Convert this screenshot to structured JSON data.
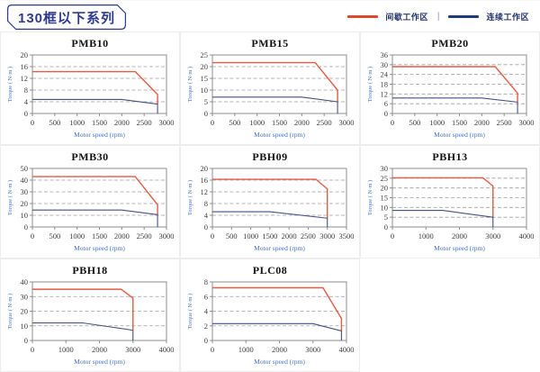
{
  "header": {
    "title": "130框以下系列",
    "legend": {
      "separator": "|",
      "items": [
        {
          "key": "intermittent",
          "label": "间歇工作区",
          "color": "#E2472B"
        },
        {
          "key": "continuous",
          "label": "连续工作区",
          "color": "#1F3D7C"
        }
      ]
    }
  },
  "palette": {
    "intermittent": "#E25B47",
    "continuous": "#44517F",
    "grid": "#9E9E9E",
    "axis": "#8C8C8C"
  },
  "chart_data": [
    {
      "type": "line",
      "title": "PMB10",
      "xlabel": "Motor speed (rpm)",
      "ylabel": "Torque ( N·m )",
      "xlim": [
        0,
        3000
      ],
      "ylim": [
        0,
        20
      ],
      "xticks": [
        0,
        500,
        1000,
        1500,
        2000,
        2500,
        3000
      ],
      "yticks": [
        0,
        4,
        8,
        12,
        16,
        20
      ],
      "grid": "horizontal-dashed",
      "legend_position": "none",
      "series": [
        {
          "key": "intermittent",
          "name": "间歇工作区",
          "points": [
            [
              0,
              14.3
            ],
            [
              2300,
              14.3
            ],
            [
              2800,
              6.5
            ],
            [
              2800,
              3.2
            ]
          ]
        },
        {
          "key": "continuous",
          "name": "连续工作区",
          "points": [
            [
              0,
              4.8
            ],
            [
              2000,
              4.8
            ],
            [
              2800,
              3.2
            ],
            [
              2800,
              0
            ]
          ]
        }
      ]
    },
    {
      "type": "line",
      "title": "PMB15",
      "xlabel": "Motor speed (rpm)",
      "ylabel": "Torque ( N·m )",
      "xlim": [
        0,
        3000
      ],
      "ylim": [
        0,
        25
      ],
      "xticks": [
        0,
        500,
        1000,
        1500,
        2000,
        2500,
        3000
      ],
      "yticks": [
        0,
        5,
        10,
        15,
        20,
        25
      ],
      "grid": "horizontal-dashed",
      "legend_position": "none",
      "series": [
        {
          "key": "intermittent",
          "name": "间歇工作区",
          "points": [
            [
              0,
              21.7
            ],
            [
              2300,
              21.7
            ],
            [
              2800,
              10
            ],
            [
              2800,
              5
            ]
          ]
        },
        {
          "key": "continuous",
          "name": "连续工作区",
          "points": [
            [
              0,
              7
            ],
            [
              2000,
              7
            ],
            [
              2800,
              5
            ],
            [
              2800,
              0
            ]
          ]
        }
      ]
    },
    {
      "type": "line",
      "title": "PMB20",
      "xlabel": "Motor speed (rpm)",
      "ylabel": "Torque ( N·m )",
      "xlim": [
        0,
        3000
      ],
      "ylim": [
        0,
        36
      ],
      "xticks": [
        0,
        500,
        1000,
        1500,
        2000,
        2500,
        3000
      ],
      "yticks": [
        0,
        6,
        12,
        18,
        24,
        30,
        36
      ],
      "grid": "horizontal-dashed",
      "legend_position": "none",
      "series": [
        {
          "key": "intermittent",
          "name": "间歇工作区",
          "points": [
            [
              0,
              28.8
            ],
            [
              2300,
              28.8
            ],
            [
              2800,
              12.5
            ],
            [
              2800,
              7
            ]
          ]
        },
        {
          "key": "continuous",
          "name": "连续工作区",
          "points": [
            [
              0,
              9.5
            ],
            [
              2000,
              9.5
            ],
            [
              2800,
              7
            ],
            [
              2800,
              0
            ]
          ]
        }
      ]
    },
    {
      "type": "line",
      "title": "PMB30",
      "xlabel": "Motor speed (rpm)",
      "ylabel": "Torque ( N·m )",
      "xlim": [
        0,
        3000
      ],
      "ylim": [
        0,
        50
      ],
      "xticks": [
        0,
        500,
        1000,
        1500,
        2000,
        2500,
        3000
      ],
      "yticks": [
        0,
        10,
        20,
        30,
        40,
        50
      ],
      "grid": "horizontal-dashed",
      "legend_position": "none",
      "series": [
        {
          "key": "intermittent",
          "name": "间歇工作区",
          "points": [
            [
              0,
              43
            ],
            [
              2300,
              43
            ],
            [
              2800,
              19
            ],
            [
              2800,
              10.5
            ]
          ]
        },
        {
          "key": "continuous",
          "name": "连续工作区",
          "points": [
            [
              0,
              14.5
            ],
            [
              2000,
              14.5
            ],
            [
              2800,
              10.5
            ],
            [
              2800,
              0
            ]
          ]
        }
      ]
    },
    {
      "type": "line",
      "title": "PBH09",
      "xlabel": "Motor speed (rpm)",
      "ylabel": "Torque ( N·m )",
      "xlim": [
        0,
        3500
      ],
      "ylim": [
        0,
        20
      ],
      "xticks": [
        0,
        500,
        1000,
        1500,
        2000,
        2500,
        3000,
        3500
      ],
      "yticks": [
        0,
        4,
        8,
        12,
        16,
        20
      ],
      "grid": "horizontal-dashed",
      "legend_position": "none",
      "series": [
        {
          "key": "intermittent",
          "name": "间歇工作区",
          "points": [
            [
              0,
              16.3
            ],
            [
              2700,
              16.3
            ],
            [
              3000,
              13
            ],
            [
              3000,
              3
            ]
          ]
        },
        {
          "key": "continuous",
          "name": "连续工作区",
          "points": [
            [
              0,
              5.2
            ],
            [
              1500,
              5.2
            ],
            [
              3000,
              3
            ],
            [
              3000,
              0
            ]
          ]
        }
      ]
    },
    {
      "type": "line",
      "title": "PBH13",
      "xlabel": "Motor speed (rpm)",
      "ylabel": "Torque ( N·m )",
      "xlim": [
        0,
        4000
      ],
      "ylim": [
        0,
        30
      ],
      "xticks": [
        0,
        1000,
        2000,
        3000,
        4000
      ],
      "yticks": [
        0,
        5,
        10,
        15,
        20,
        25,
        30
      ],
      "grid": "horizontal-dashed",
      "legend_position": "none",
      "series": [
        {
          "key": "intermittent",
          "name": "间歇工作区",
          "points": [
            [
              0,
              25.2
            ],
            [
              2700,
              25.2
            ],
            [
              3000,
              21
            ],
            [
              3000,
              5
            ]
          ]
        },
        {
          "key": "continuous",
          "name": "连续工作区",
          "points": [
            [
              0,
              8.5
            ],
            [
              1500,
              8.5
            ],
            [
              3000,
              5
            ],
            [
              3000,
              0
            ]
          ]
        }
      ]
    },
    {
      "type": "line",
      "title": "PBH18",
      "xlabel": "Motor speed (rpm)",
      "ylabel": "Torque ( N·m )",
      "xlim": [
        0,
        4000
      ],
      "ylim": [
        0,
        40
      ],
      "xticks": [
        0,
        1000,
        2000,
        3000,
        4000
      ],
      "yticks": [
        0,
        10,
        20,
        30,
        40
      ],
      "grid": "horizontal-dashed",
      "legend_position": "none",
      "series": [
        {
          "key": "intermittent",
          "name": "间歇工作区",
          "points": [
            [
              0,
              35
            ],
            [
              2650,
              35
            ],
            [
              3000,
              29
            ],
            [
              3000,
              7
            ]
          ]
        },
        {
          "key": "continuous",
          "name": "连续工作区",
          "points": [
            [
              0,
              12
            ],
            [
              1500,
              12
            ],
            [
              3000,
              7
            ],
            [
              3000,
              0
            ]
          ]
        }
      ]
    },
    {
      "type": "line",
      "title": "PLC08",
      "xlabel": "Motor speed (rpm)",
      "ylabel": "Torque ( N·m )",
      "xlim": [
        0,
        4000
      ],
      "ylim": [
        0,
        8
      ],
      "xticks": [
        0,
        1000,
        2000,
        3000,
        4000
      ],
      "yticks": [
        0,
        2,
        4,
        6,
        8
      ],
      "grid": "horizontal-dashed",
      "legend_position": "none",
      "series": [
        {
          "key": "intermittent",
          "name": "间歇工作区",
          "points": [
            [
              0,
              7.2
            ],
            [
              3300,
              7.2
            ],
            [
              3850,
              3
            ],
            [
              3850,
              1.3
            ]
          ]
        },
        {
          "key": "continuous",
          "name": "连续工作区",
          "points": [
            [
              0,
              2.3
            ],
            [
              3000,
              2.3
            ],
            [
              3850,
              1.3
            ],
            [
              3850,
              0
            ]
          ]
        }
      ]
    }
  ]
}
